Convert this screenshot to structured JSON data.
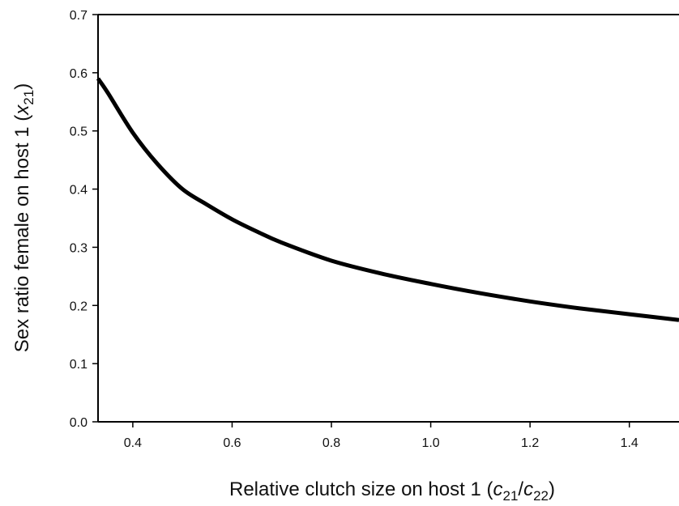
{
  "chart_data": {
    "type": "line",
    "title": "",
    "xlabel": {
      "prefix": "Relative clutch size on host 1 (",
      "var1": "c",
      "sub1": "21",
      "slash": "/",
      "var2": "c",
      "sub2": "22",
      "suffix": ")"
    },
    "ylabel": {
      "prefix": "Sex ratio female on host 1 (",
      "var": "x",
      "sub": "21",
      "suffix": ")"
    },
    "xlim": [
      0.33,
      1.5
    ],
    "ylim": [
      0.0,
      0.7
    ],
    "xticks": [
      0.4,
      0.6,
      0.8,
      1.0,
      1.2,
      1.4
    ],
    "xtick_labels": [
      "0.4",
      "0.6",
      "0.8",
      "1.0",
      "1.2",
      "1.4"
    ],
    "yticks": [
      0.0,
      0.1,
      0.2,
      0.3,
      0.4,
      0.5,
      0.6,
      0.7
    ],
    "ytick_labels": [
      "0.0",
      "0.1",
      "0.2",
      "0.3",
      "0.4",
      "0.5",
      "0.6",
      "0.7"
    ],
    "grid": false,
    "legend": "none",
    "series": [
      {
        "color": "#000000",
        "x": [
          0.33,
          0.35,
          0.4,
          0.45,
          0.5,
          0.55,
          0.6,
          0.65,
          0.7,
          0.8,
          0.9,
          1.0,
          1.1,
          1.2,
          1.3,
          1.4,
          1.5
        ],
        "y": [
          0.59,
          0.565,
          0.497,
          0.443,
          0.4,
          0.373,
          0.348,
          0.327,
          0.308,
          0.277,
          0.255,
          0.237,
          0.221,
          0.207,
          0.195,
          0.185,
          0.175
        ]
      }
    ]
  }
}
